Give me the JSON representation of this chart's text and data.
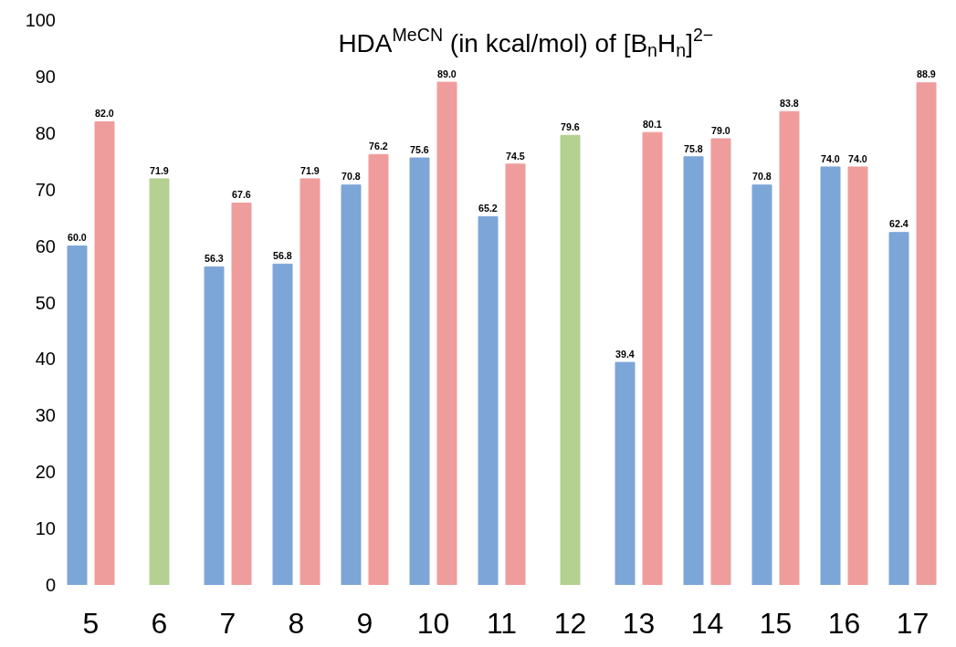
{
  "chart_data": {
    "type": "bar",
    "title": "HDA$^{MeCN}$ (in kcal/mol) of [B$_{n}$H$_{n}$]$^{2−}$",
    "categories": [
      "5",
      "6",
      "7",
      "8",
      "9",
      "10",
      "11",
      "12",
      "13",
      "14",
      "15",
      "16",
      "17"
    ],
    "series": [
      {
        "color": "#7da6d8",
        "values": [
          60.0,
          null,
          56.3,
          56.8,
          70.8,
          75.6,
          65.2,
          null,
          39.4,
          75.8,
          70.8,
          74.0,
          62.4
        ],
        "value_labels": [
          "60.0",
          null,
          "56.3",
          "56.8",
          "70.8",
          "75.6",
          "65.2",
          null,
          "39.4",
          "75.8",
          "70.8",
          "74.0",
          "62.4"
        ]
      },
      {
        "color": "#ef9d9c",
        "values": [
          82.0,
          null,
          67.6,
          71.9,
          76.2,
          89.0,
          74.5,
          null,
          80.1,
          79.0,
          83.8,
          74.0,
          88.9
        ],
        "value_labels": [
          "82.0",
          null,
          "67.6",
          "71.9",
          "76.2",
          "89.0",
          "74.5",
          null,
          "80.1",
          "79.0",
          "83.8",
          "74.0",
          "88.9"
        ]
      },
      {
        "color": "#b5d191",
        "values": [
          null,
          71.9,
          null,
          null,
          null,
          null,
          null,
          79.6,
          null,
          null,
          null,
          null,
          null
        ],
        "value_labels": [
          null,
          "71.9",
          null,
          null,
          null,
          null,
          null,
          "79.6",
          null,
          null,
          null,
          null,
          null
        ]
      }
    ],
    "ylim": [
      0,
      100
    ],
    "yticks": [
      0,
      10,
      20,
      30,
      40,
      50,
      60,
      70,
      80,
      90,
      100
    ],
    "grid": false
  }
}
